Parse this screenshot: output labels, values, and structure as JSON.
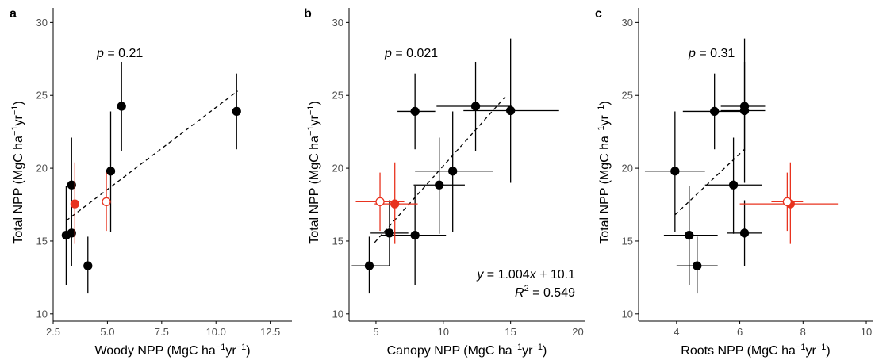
{
  "chart_data": [
    {
      "panel": "a",
      "type": "scatter",
      "xlabel": "Woody NPP (MgC ha⁻¹yr⁻¹)",
      "ylabel": "Total NPP (MgC ha⁻¹yr⁻¹)",
      "xlim": [
        2.5,
        13.5
      ],
      "ylim": [
        9.5,
        31
      ],
      "xticks": [
        2.5,
        5.0,
        7.5,
        10.0,
        12.5
      ],
      "xtick_labels": [
        "2.5",
        "5.0",
        "7.5",
        "10.0",
        "12.5"
      ],
      "yticks": [
        10,
        15,
        20,
        25,
        30
      ],
      "ytick_labels": [
        "10",
        "15",
        "20",
        "25",
        "30"
      ],
      "p_label": "p",
      "p_value": " = 0.21",
      "fit": {
        "x": [
          3.1,
          11.0
        ],
        "y": [
          16.4,
          25.3
        ]
      },
      "points": [
        {
          "x": 3.1,
          "y": 15.4,
          "yerr": [
            12.0,
            18.8
          ],
          "color": "black",
          "filled": true
        },
        {
          "x": 3.35,
          "y": 15.55,
          "yerr": [
            13.3,
            17.8
          ],
          "color": "black",
          "filled": true
        },
        {
          "x": 3.35,
          "y": 18.85,
          "yerr": [
            15.5,
            22.1
          ],
          "color": "black",
          "filled": true
        },
        {
          "x": 4.1,
          "y": 13.3,
          "yerr": [
            11.4,
            15.3
          ],
          "color": "black",
          "filled": true
        },
        {
          "x": 5.15,
          "y": 19.8,
          "yerr": [
            15.6,
            23.9
          ],
          "color": "black",
          "filled": true
        },
        {
          "x": 5.65,
          "y": 24.25,
          "yerr": [
            21.2,
            27.3
          ],
          "color": "black",
          "filled": true
        },
        {
          "x": 10.95,
          "y": 23.9,
          "yerr": [
            21.3,
            26.5
          ],
          "color": "black",
          "filled": true
        },
        {
          "x": 3.5,
          "y": 17.55,
          "yerr": [
            14.8,
            20.4
          ],
          "color": "red",
          "filled": true
        },
        {
          "x": 4.95,
          "y": 17.7,
          "yerr": [
            15.7,
            19.7
          ],
          "color": "red",
          "filled": false
        }
      ]
    },
    {
      "panel": "b",
      "type": "scatter",
      "xlabel": "Canopy NPP (MgC ha⁻¹yr⁻¹)",
      "ylabel": "Total NPP (MgC ha⁻¹yr⁻¹)",
      "xlim": [
        3,
        20.5
      ],
      "ylim": [
        9.5,
        31
      ],
      "xticks": [
        5,
        10,
        15,
        20
      ],
      "xtick_labels": [
        "5",
        "10",
        "15",
        "20"
      ],
      "yticks": [
        10,
        15,
        20,
        25,
        30
      ],
      "ytick_labels": [
        "10",
        "15",
        "20",
        "25",
        "30"
      ],
      "p_label": "p",
      "p_value": " = 0.021",
      "eq_y": "y",
      "eq_mid": " = 1.004",
      "eq_x": "x",
      "eq_end": " + 10.1",
      "r2_label": "R",
      "r2_sup": "2",
      "r2_value": " = 0.549",
      "fit": {
        "x": [
          4.9,
          14.6
        ],
        "y": [
          14.9,
          24.9
        ]
      },
      "points": [
        {
          "x": 4.5,
          "y": 13.3,
          "xerr": [
            3.2,
            6.0
          ],
          "yerr": [
            11.4,
            15.3
          ],
          "color": "black",
          "filled": true
        },
        {
          "x": 6.0,
          "y": 15.55,
          "xerr": [
            4.6,
            7.4
          ],
          "yerr": [
            13.3,
            17.8
          ],
          "color": "black",
          "filled": true
        },
        {
          "x": 7.9,
          "y": 15.4,
          "xerr": [
            5.4,
            10.2
          ],
          "yerr": [
            12.0,
            18.8
          ],
          "color": "black",
          "filled": true
        },
        {
          "x": 9.7,
          "y": 18.85,
          "xerr": [
            7.8,
            11.6
          ],
          "yerr": [
            15.5,
            22.1
          ],
          "color": "black",
          "filled": true
        },
        {
          "x": 10.7,
          "y": 19.8,
          "xerr": [
            7.9,
            13.7
          ],
          "yerr": [
            15.6,
            23.9
          ],
          "color": "black",
          "filled": true
        },
        {
          "x": 7.9,
          "y": 23.9,
          "xerr": [
            6.6,
            9.4
          ],
          "yerr": [
            21.3,
            26.5
          ],
          "color": "black",
          "filled": true
        },
        {
          "x": 12.4,
          "y": 24.25,
          "xerr": [
            9.5,
            15.1
          ],
          "yerr": [
            21.2,
            27.3
          ],
          "color": "black",
          "filled": true
        },
        {
          "x": 15.0,
          "y": 23.95,
          "xerr": [
            11.5,
            18.6
          ],
          "yerr": [
            19.0,
            28.9
          ],
          "color": "black",
          "filled": true
        },
        {
          "x": 6.4,
          "y": 17.55,
          "xerr": [
            4.9,
            8.1
          ],
          "yerr": [
            14.8,
            20.4
          ],
          "color": "red",
          "filled": true
        },
        {
          "x": 5.3,
          "y": 17.7,
          "xerr": [
            3.5,
            7.1
          ],
          "yerr": [
            15.7,
            19.7
          ],
          "color": "red",
          "filled": false
        }
      ]
    },
    {
      "panel": "c",
      "type": "scatter",
      "xlabel": "Roots NPP (MgC ha⁻¹yr⁻¹)",
      "ylabel": "Total NPP (MgC ha⁻¹yr⁻¹)",
      "xlim": [
        2.8,
        10.2
      ],
      "ylim": [
        9.5,
        31
      ],
      "xticks": [
        4,
        6,
        8,
        10
      ],
      "xtick_labels": [
        "4",
        "6",
        "8",
        "10"
      ],
      "yticks": [
        10,
        15,
        20,
        25,
        30
      ],
      "ytick_labels": [
        "10",
        "15",
        "20",
        "25",
        "30"
      ],
      "p_label": "p",
      "p_value": " = 0.31",
      "fit": {
        "x": [
          3.95,
          6.15
        ],
        "y": [
          16.8,
          21.3
        ]
      },
      "points": [
        {
          "x": 3.95,
          "y": 19.8,
          "xerr": [
            3.0,
            4.9
          ],
          "yerr": [
            15.6,
            23.9
          ],
          "color": "black",
          "filled": true
        },
        {
          "x": 4.4,
          "y": 15.4,
          "xerr": [
            3.6,
            5.3
          ],
          "yerr": [
            12.0,
            18.8
          ],
          "color": "black",
          "filled": true
        },
        {
          "x": 4.65,
          "y": 13.3,
          "xerr": [
            4.0,
            5.3
          ],
          "yerr": [
            11.4,
            15.3
          ],
          "color": "black",
          "filled": true
        },
        {
          "x": 5.2,
          "y": 23.9,
          "xerr": [
            4.2,
            6.2
          ],
          "yerr": [
            21.3,
            26.5
          ],
          "color": "black",
          "filled": true
        },
        {
          "x": 5.8,
          "y": 18.85,
          "xerr": [
            4.9,
            6.7
          ],
          "yerr": [
            15.5,
            22.1
          ],
          "color": "black",
          "filled": true
        },
        {
          "x": 6.15,
          "y": 15.55,
          "xerr": [
            5.6,
            6.7
          ],
          "yerr": [
            13.3,
            17.8
          ],
          "color": "black",
          "filled": true
        },
        {
          "x": 6.15,
          "y": 24.25,
          "xerr": [
            5.4,
            6.8
          ],
          "yerr": [
            21.2,
            27.3
          ],
          "color": "black",
          "filled": true
        },
        {
          "x": 6.15,
          "y": 23.95,
          "xerr": [
            5.4,
            6.8
          ],
          "yerr": [
            19.0,
            28.9
          ],
          "color": "black",
          "filled": true
        },
        {
          "x": 7.6,
          "y": 17.55,
          "xerr": [
            6.0,
            9.1
          ],
          "yerr": [
            14.8,
            20.4
          ],
          "color": "red",
          "filled": true
        },
        {
          "x": 7.5,
          "y": 17.7,
          "xerr": [
            7.0,
            8.0
          ],
          "yerr": [
            15.7,
            19.7
          ],
          "color": "red",
          "filled": false
        }
      ]
    }
  ],
  "colors": {
    "black": "#000000",
    "red": "#e8331f"
  },
  "sup_minus1": "−1"
}
